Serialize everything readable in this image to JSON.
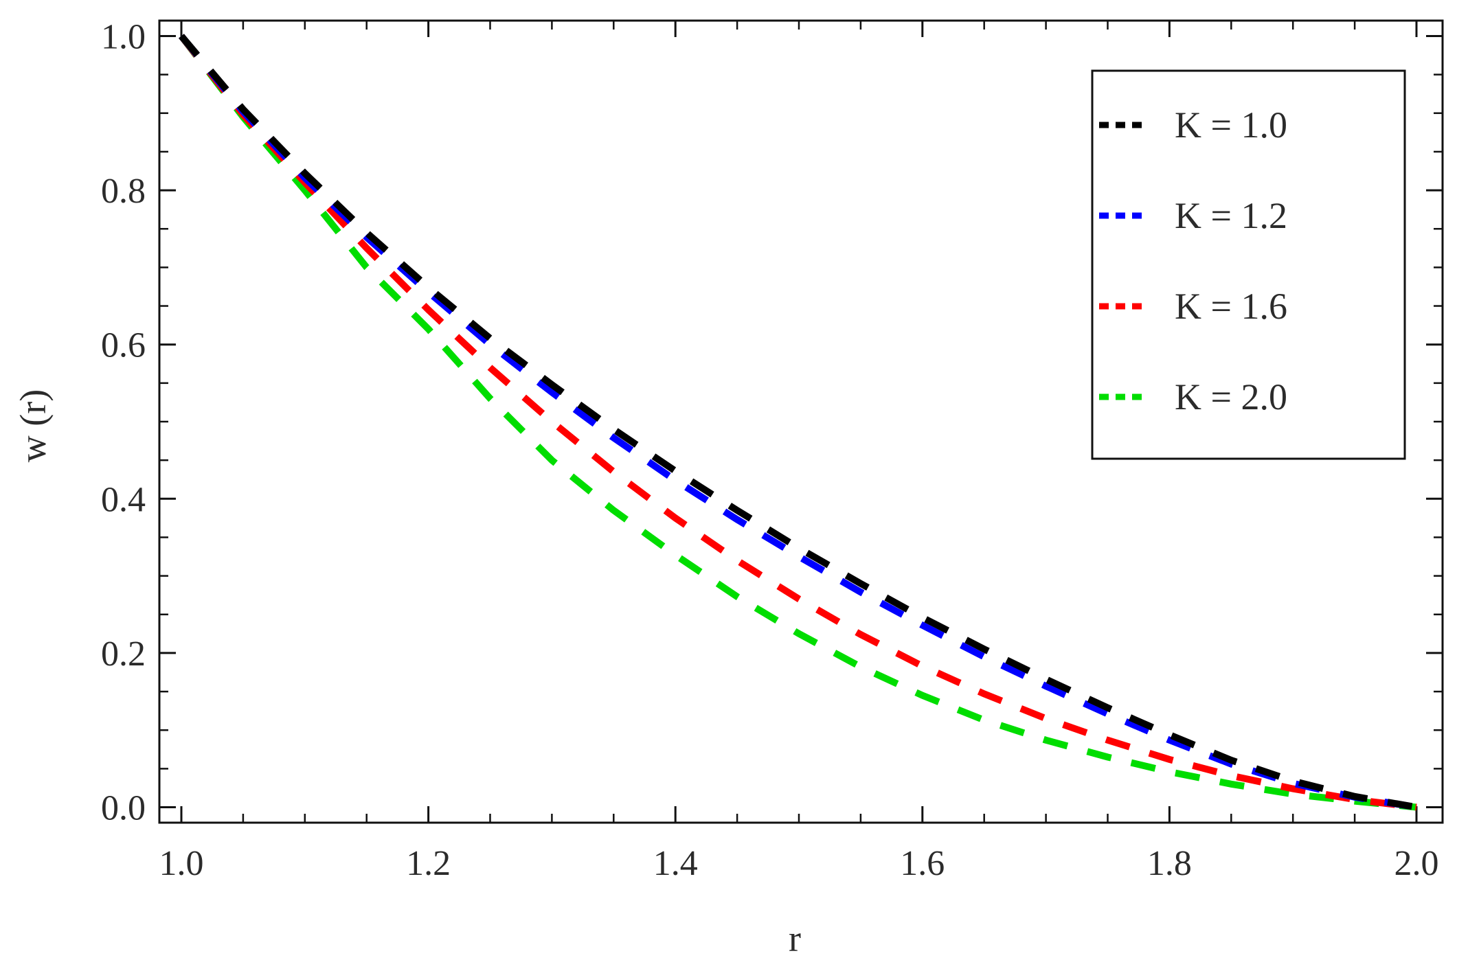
{
  "chart_data": {
    "type": "line",
    "xlabel": "r",
    "ylabel": "w (r)",
    "xlim": [
      1.0,
      2.0
    ],
    "ylim": [
      -0.02,
      1.02
    ],
    "xticks": [
      "1.0",
      "1.2",
      "1.4",
      "1.6",
      "1.8",
      "2.0"
    ],
    "yticks": [
      "0.0",
      "0.2",
      "0.4",
      "0.6",
      "0.8",
      "1.0"
    ],
    "grid": false,
    "legend_position": "top-right",
    "line_style": "dashed",
    "x": [
      1.0,
      1.05,
      1.1,
      1.15,
      1.2,
      1.25,
      1.3,
      1.35,
      1.4,
      1.45,
      1.5,
      1.55,
      1.6,
      1.65,
      1.7,
      1.75,
      1.8,
      1.85,
      1.9,
      1.95,
      2.0
    ],
    "series": [
      {
        "name": "K = 1.0",
        "color": "#000000",
        "values": [
          1.0,
          0.905,
          0.822,
          0.745,
          0.674,
          0.608,
          0.548,
          0.49,
          0.436,
          0.385,
          0.336,
          0.29,
          0.246,
          0.205,
          0.166,
          0.129,
          0.094,
          0.061,
          0.034,
          0.014,
          0.0
        ]
      },
      {
        "name": "K = 1.2",
        "color": "#0000ff",
        "values": [
          1.0,
          0.902,
          0.816,
          0.739,
          0.668,
          0.6,
          0.538,
          0.479,
          0.424,
          0.373,
          0.325,
          0.279,
          0.236,
          0.195,
          0.157,
          0.121,
          0.087,
          0.056,
          0.031,
          0.013,
          0.0
        ]
      },
      {
        "name": "K = 1.6",
        "color": "#ff0000",
        "values": [
          1.0,
          0.898,
          0.81,
          0.725,
          0.645,
          0.57,
          0.5,
          0.435,
          0.375,
          0.32,
          0.27,
          0.224,
          0.183,
          0.147,
          0.115,
          0.087,
          0.062,
          0.041,
          0.024,
          0.01,
          0.0
        ]
      },
      {
        "name": "K = 2.0",
        "color": "#00dd00",
        "values": [
          1.0,
          0.895,
          0.8,
          0.7,
          0.62,
          0.53,
          0.45,
          0.385,
          0.327,
          0.273,
          0.225,
          0.182,
          0.145,
          0.113,
          0.087,
          0.065,
          0.046,
          0.03,
          0.017,
          0.008,
          0.0
        ]
      }
    ]
  }
}
